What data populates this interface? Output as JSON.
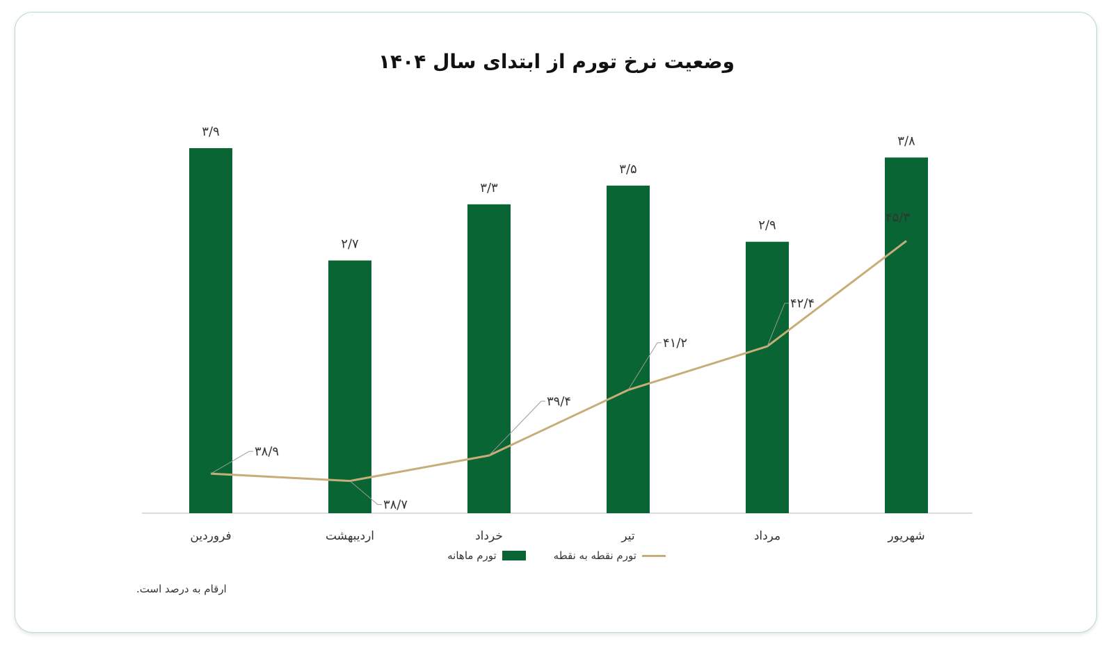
{
  "chart_data": {
    "type": "bar",
    "title": "وضعیت نرخ تورم از ابتدای سال ۱۴۰۴",
    "categories": [
      "فروردین",
      "اردیبهشت",
      "خرداد",
      "تیر",
      "مرداد",
      "شهریور"
    ],
    "series": [
      {
        "name": "تورم ماهانه",
        "type": "bar",
        "axis": "left",
        "color": "#0a6535",
        "values": [
          3.9,
          2.7,
          3.3,
          3.5,
          2.9,
          3.8
        ],
        "labels": [
          "۳/۹",
          "۲/۷",
          "۳/۳",
          "۳/۵",
          "۲/۹",
          "۳/۸"
        ]
      },
      {
        "name": "تورم نقطه به نقطه",
        "type": "line",
        "axis": "right",
        "color": "#c7ad78",
        "values": [
          38.9,
          38.7,
          39.4,
          41.2,
          42.4,
          45.3
        ],
        "labels": [
          "۳۸/۹",
          "۳۸/۷",
          "۳۹/۴",
          "۴۱/۲",
          "۴۲/۴",
          "۴۵/۳"
        ]
      }
    ],
    "legend": "bottom",
    "grid": false
  },
  "footnote": "ارقام به درصد است."
}
